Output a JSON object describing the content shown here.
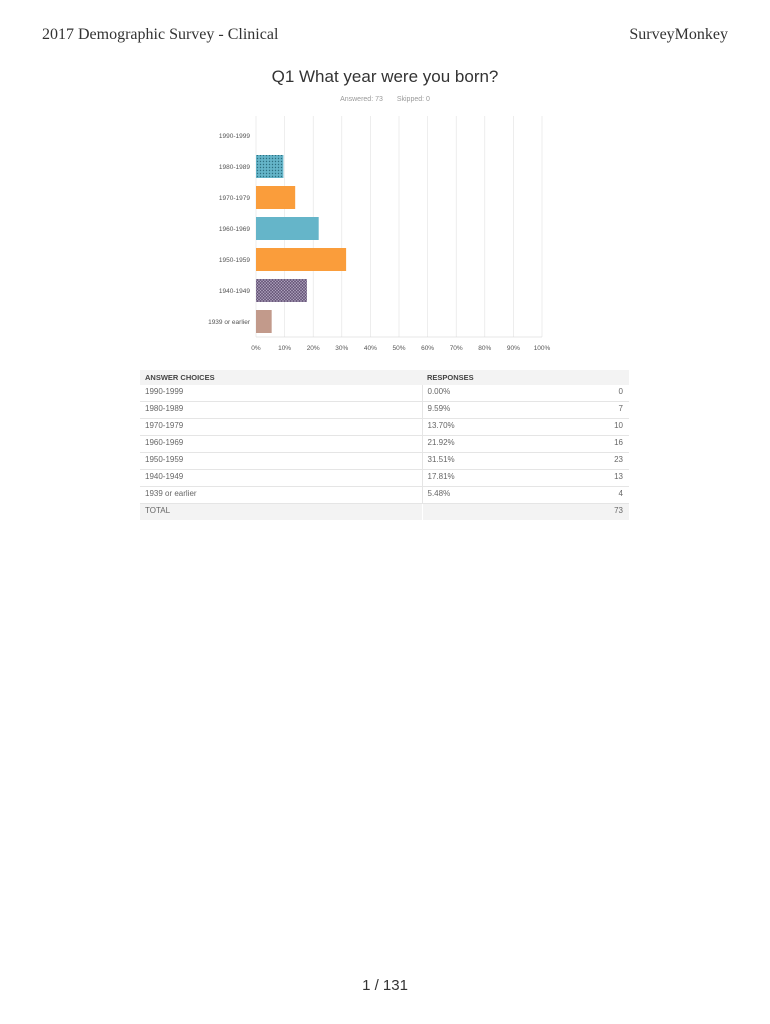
{
  "header": {
    "left_title": "2017 Demographic Survey - Clinical",
    "right_title": "SurveyMonkey"
  },
  "question": {
    "title": "Q1 What year were you born?",
    "answered": "Answered: 73",
    "skipped": "Skipped: 0"
  },
  "colors": {
    "blue": "#65b5c9",
    "orange": "#fa9d3b",
    "purple": "#6d5d7e",
    "rose": "#c29a8b",
    "grid": "#e2e2e2"
  },
  "chart_data": {
    "type": "bar",
    "orientation": "horizontal",
    "categories": [
      "1990-1999",
      "1980-1989",
      "1970-1979",
      "1960-1969",
      "1950-1959",
      "1940-1949",
      "1939 or earlier"
    ],
    "values": [
      0.0,
      9.59,
      13.7,
      21.92,
      31.51,
      17.81,
      5.48
    ],
    "bar_colors": [
      "#65b5c9",
      "#65b5c9",
      "#fa9d3b",
      "#65b5c9",
      "#fa9d3b",
      "#6d5d7e",
      "#c29a8b"
    ],
    "patterned": [
      false,
      true,
      false,
      false,
      false,
      true,
      false
    ],
    "xlim": [
      0,
      100
    ],
    "x_ticks": [
      "0%",
      "10%",
      "20%",
      "30%",
      "40%",
      "50%",
      "60%",
      "70%",
      "80%",
      "90%",
      "100%"
    ],
    "grid": true
  },
  "table": {
    "headers": [
      "ANSWER CHOICES",
      "RESPONSES"
    ],
    "rows": [
      {
        "choice": "1990-1999",
        "percent": "0.00%",
        "count": "0"
      },
      {
        "choice": "1980-1989",
        "percent": "9.59%",
        "count": "7"
      },
      {
        "choice": "1970-1979",
        "percent": "13.70%",
        "count": "10"
      },
      {
        "choice": "1960-1969",
        "percent": "21.92%",
        "count": "16"
      },
      {
        "choice": "1950-1959",
        "percent": "31.51%",
        "count": "23"
      },
      {
        "choice": "1940-1949",
        "percent": "17.81%",
        "count": "13"
      },
      {
        "choice": "1939 or earlier",
        "percent": "5.48%",
        "count": "4"
      }
    ],
    "total_label": "TOTAL",
    "total_count": "73"
  },
  "footer": {
    "page": "1 / 131"
  }
}
